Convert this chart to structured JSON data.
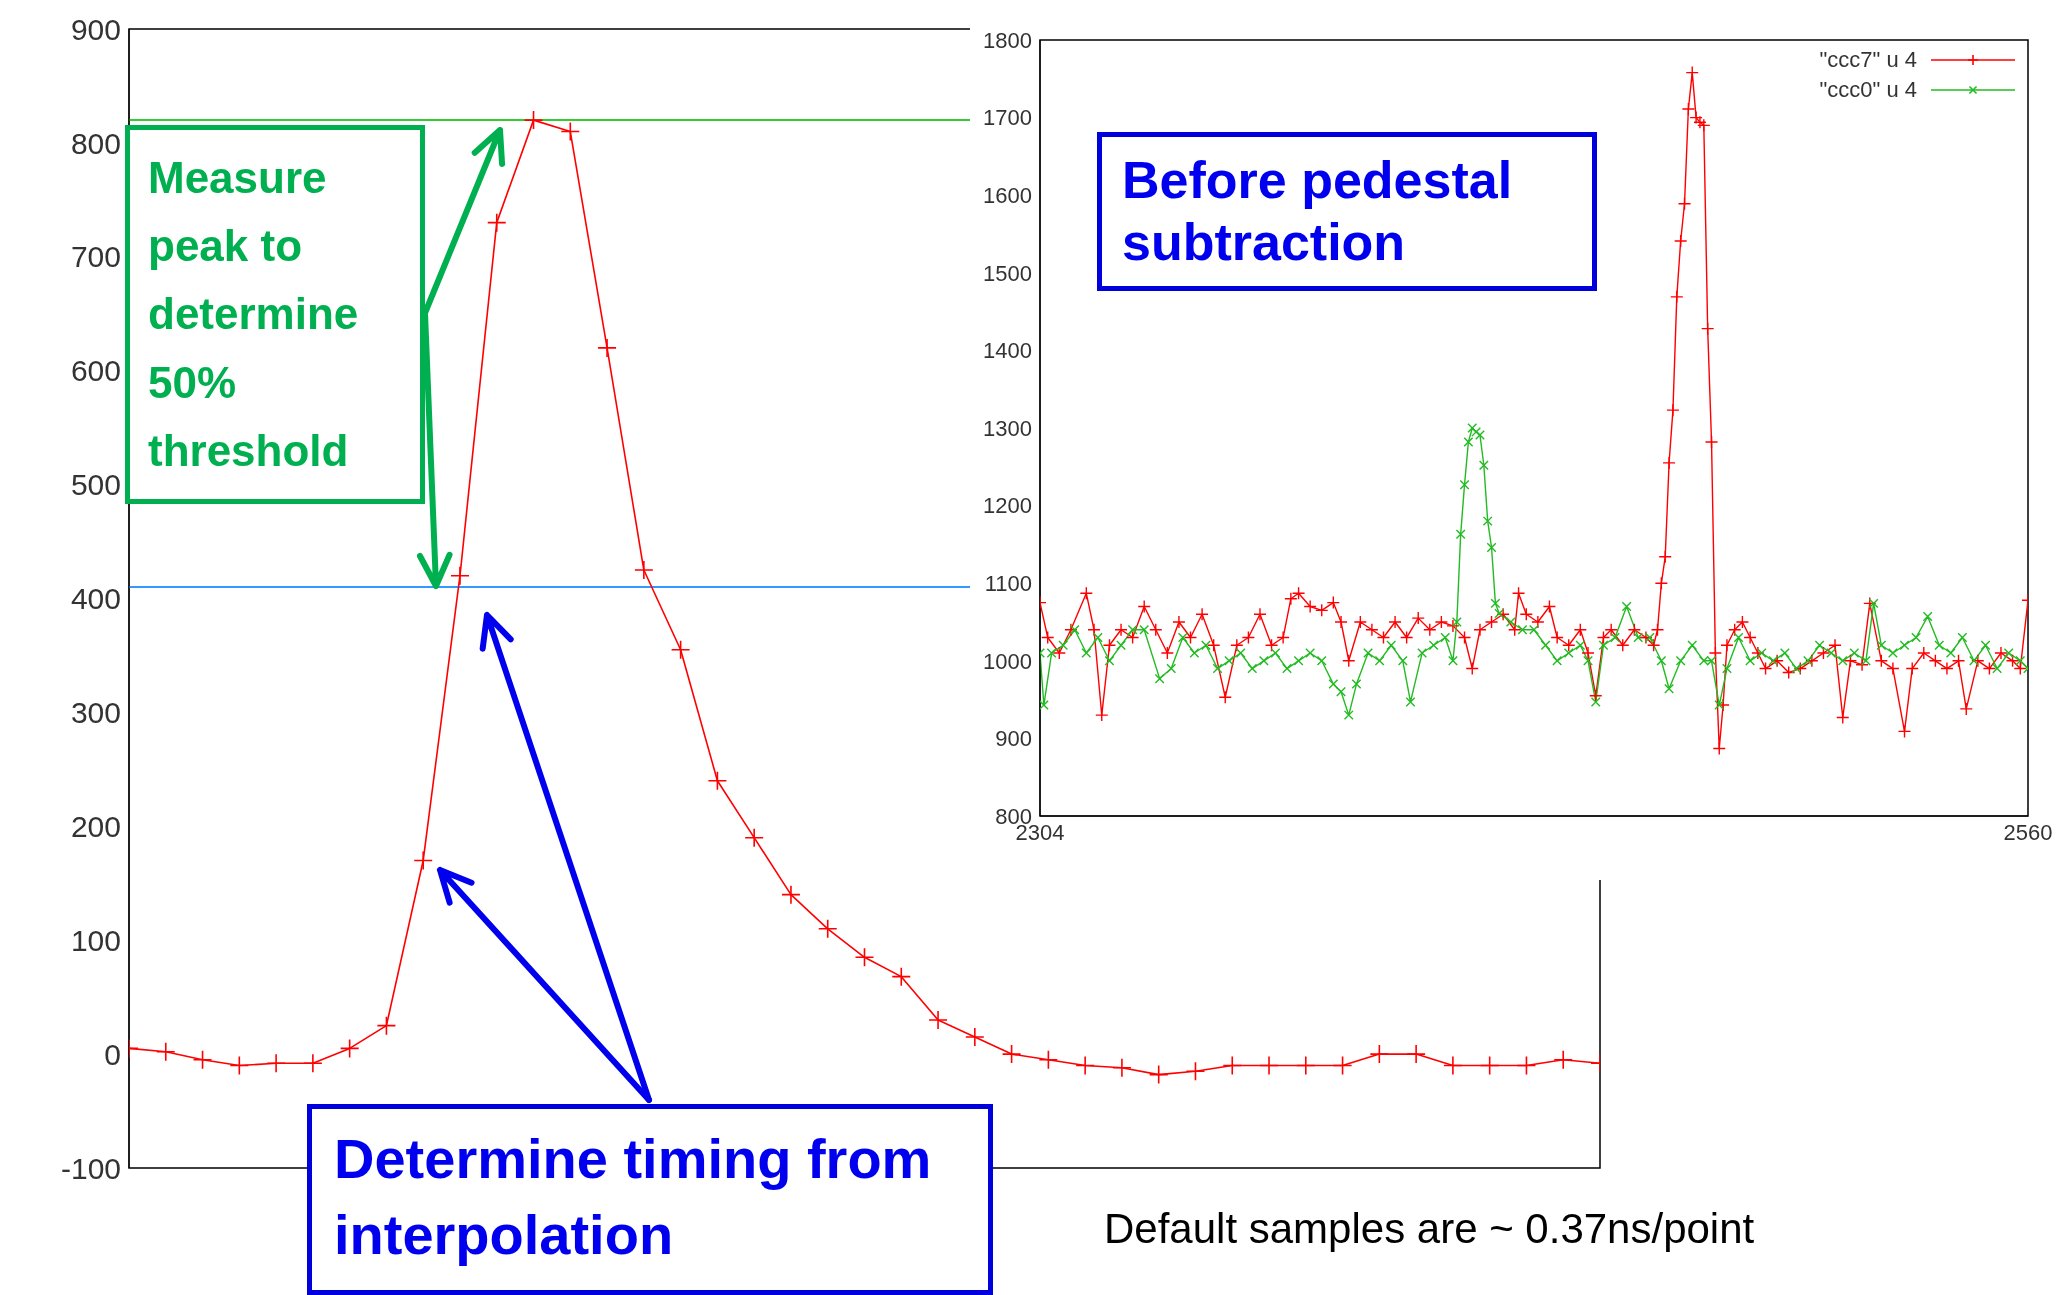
{
  "chart_data": [
    {
      "type": "line",
      "categories": [
        null,
        null,
        null,
        null,
        null,
        null,
        null,
        null,
        null,
        null,
        null,
        null,
        null,
        null,
        null,
        null,
        null,
        null,
        null,
        null,
        null,
        null,
        null,
        null,
        null,
        null,
        null,
        null,
        null,
        null,
        null,
        null,
        null,
        null,
        null,
        null,
        null,
        null,
        null,
        null,
        null
      ],
      "values": [
        5,
        2,
        -5,
        -10,
        -8,
        -8,
        5,
        25,
        170,
        420,
        730,
        820,
        810,
        620,
        425,
        355,
        240,
        190,
        140,
        110,
        85,
        68,
        30,
        15,
        0,
        -5,
        -10,
        -12,
        -18,
        -15,
        -10,
        -10,
        -10,
        -10,
        0,
        0,
        -10,
        -10,
        -10,
        -5,
        -8
      ],
      "color": "#ff0000",
      "marker": "cross",
      "ylim": [
        -100,
        900
      ],
      "yticks": [
        -100,
        0,
        100,
        200,
        300,
        400,
        500,
        600,
        700,
        800,
        900
      ],
      "tick_labels": "y",
      "ref_lines": [
        {
          "axis": "y",
          "value": 820,
          "color": "#33cc33"
        },
        {
          "axis": "y",
          "value": 410,
          "color": "#3399ff"
        }
      ],
      "annotations": [
        "Measure peak to determine 50% threshold",
        "Determine timing from interpolation",
        "Default samples are ~ 0.37ns/point"
      ]
    },
    {
      "type": "line",
      "marker": "cross",
      "legend": "top right",
      "xlim": [
        2304,
        2560
      ],
      "xticks": [
        2304,
        2560
      ],
      "ylim": [
        800,
        1800
      ],
      "yticks": [
        800,
        900,
        1000,
        1100,
        1200,
        1300,
        1400,
        1500,
        1600,
        1700,
        1800
      ],
      "annotations": [
        "Before pedestal subtraction"
      ],
      "series": [
        {
          "name": "\"ccc7\" u 4",
          "color": "#ff0000",
          "x": [
            2304,
            2306,
            2309,
            2312,
            2316,
            2318,
            2320,
            2322,
            2325,
            2328,
            2331,
            2334,
            2337,
            2340,
            2343,
            2346,
            2349,
            2352,
            2355,
            2358,
            2361,
            2364,
            2367,
            2369,
            2371,
            2374,
            2377,
            2380,
            2382,
            2384,
            2387,
            2390,
            2393,
            2396,
            2399,
            2402,
            2405,
            2408,
            2411,
            2414,
            2416,
            2418,
            2421,
            2424,
            2427,
            2428,
            2430,
            2433,
            2436,
            2438,
            2441,
            2444,
            2446,
            2448,
            2450,
            2452,
            2455,
            2458,
            2461,
            2463,
            2464,
            2465,
            2466,
            2467,
            2468,
            2469,
            2470,
            2471,
            2472,
            2473,
            2474,
            2475,
            2476,
            2477,
            2478,
            2479,
            2480,
            2481,
            2482,
            2484,
            2486,
            2488,
            2490,
            2492,
            2495,
            2498,
            2501,
            2504,
            2507,
            2510,
            2512,
            2514,
            2517,
            2519,
            2522,
            2525,
            2528,
            2530,
            2533,
            2536,
            2539,
            2542,
            2544,
            2547,
            2550,
            2553,
            2556,
            2558,
            2560
          ],
          "values": [
            1075,
            1030,
            1010,
            1040,
            1087,
            1040,
            930,
            1020,
            1040,
            1030,
            1070,
            1040,
            1010,
            1050,
            1030,
            1060,
            1020,
            953,
            1020,
            1030,
            1060,
            1020,
            1030,
            1080,
            1087,
            1070,
            1065,
            1075,
            1050,
            1000,
            1050,
            1040,
            1030,
            1050,
            1030,
            1055,
            1040,
            1050,
            1045,
            1030,
            990,
            1040,
            1050,
            1060,
            1040,
            1087,
            1060,
            1050,
            1070,
            1030,
            1020,
            1040,
            1010,
            955,
            1030,
            1040,
            1020,
            1040,
            1030,
            1020,
            1040,
            1100,
            1134,
            1255,
            1323,
            1469,
            1541,
            1589,
            1711,
            1758,
            1700,
            1694,
            1690,
            1428,
            1282,
            1010,
            887,
            943,
            1020,
            1040,
            1050,
            1030,
            1010,
            990,
            1000,
            985,
            990,
            1000,
            1010,
            1020,
            927,
            1000,
            995,
            1074,
            1000,
            990,
            909,
            990,
            1010,
            1000,
            990,
            1000,
            938,
            1000,
            990,
            1010,
            1000,
            990,
            1078
          ]
        },
        {
          "name": "\"ccc0\" u 4",
          "color": "#22bb22",
          "x": [
            2304,
            2305,
            2307,
            2310,
            2313,
            2316,
            2319,
            2322,
            2325,
            2328,
            2331,
            2335,
            2338,
            2341,
            2344,
            2347,
            2350,
            2353,
            2356,
            2359,
            2362,
            2365,
            2368,
            2371,
            2374,
            2377,
            2380,
            2382,
            2384,
            2386,
            2389,
            2392,
            2395,
            2398,
            2400,
            2403,
            2406,
            2409,
            2411,
            2412,
            2413,
            2414,
            2415,
            2416,
            2417,
            2418,
            2419,
            2420,
            2421,
            2422,
            2423,
            2426,
            2429,
            2432,
            2435,
            2438,
            2441,
            2444,
            2446,
            2448,
            2450,
            2453,
            2456,
            2459,
            2462,
            2465,
            2467,
            2470,
            2473,
            2476,
            2478,
            2480,
            2482,
            2485,
            2488,
            2491,
            2494,
            2497,
            2500,
            2503,
            2506,
            2509,
            2512,
            2515,
            2518,
            2520,
            2522,
            2525,
            2528,
            2531,
            2534,
            2537,
            2540,
            2543,
            2546,
            2549,
            2552,
            2555,
            2558,
            2560
          ],
          "values": [
            1010,
            943,
            1010,
            1020,
            1040,
            1010,
            1030,
            1000,
            1020,
            1040,
            1040,
            977,
            990,
            1030,
            1010,
            1020,
            990,
            1000,
            1010,
            990,
            1000,
            1010,
            990,
            1000,
            1010,
            1000,
            970,
            960,
            930,
            970,
            1010,
            1000,
            1020,
            1000,
            947,
            1010,
            1020,
            1030,
            1000,
            1050,
            1163,
            1227,
            1282,
            1300,
            1295,
            1291,
            1252,
            1180,
            1146,
            1074,
            1061,
            1050,
            1040,
            1040,
            1020,
            1000,
            1010,
            1020,
            1000,
            947,
            1020,
            1030,
            1070,
            1030,
            1030,
            1000,
            964,
            1000,
            1020,
            1000,
            1000,
            943,
            990,
            1030,
            1000,
            1010,
            1000,
            1010,
            990,
            1000,
            1020,
            1010,
            1000,
            1010,
            1000,
            1074,
            1020,
            1010,
            1020,
            1030,
            1057,
            1020,
            1010,
            1030,
            1000,
            1020,
            990,
            1010,
            1000,
            990
          ]
        }
      ]
    }
  ]
}
